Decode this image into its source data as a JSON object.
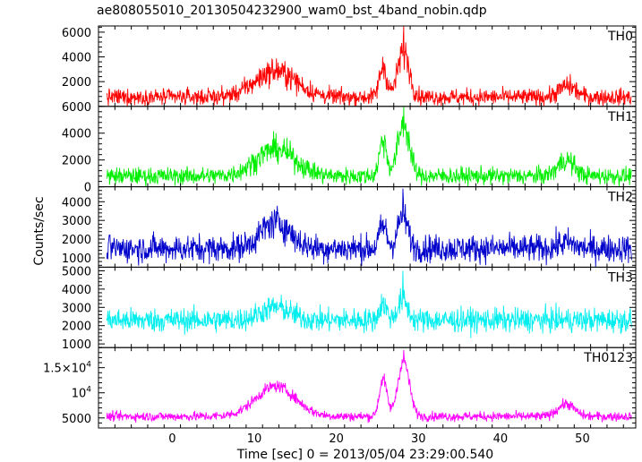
{
  "title": "ae808055010_20130504232900_wam0_bst_4band_nobin.qdp",
  "xlabel": "Time [sec] 0 = 2013/05/04 23:29:00.540",
  "ylabel": "Counts/sec",
  "chart_data": {
    "type": "line",
    "title": "ae808055010_20130504232900_wam0_bst_4band_nobin.qdp",
    "xlabel": "Time [sec] 0 = 2013/05/04 23:29:00.540",
    "ylabel": "Counts/sec",
    "xlim": [
      -9,
      56.5
    ],
    "x_ticks": [
      0,
      10,
      20,
      30,
      40,
      50
    ],
    "x_tick_labels": [
      "0",
      "10",
      "20",
      "30",
      "40",
      "50"
    ],
    "grid": false,
    "legend": "none",
    "data_range": [
      -8,
      56
    ],
    "panels": [
      {
        "name": "TH0",
        "color": "#ff0000",
        "ylim": [
          0,
          6500
        ],
        "y_ticks": [
          2000,
          4000,
          6000
        ],
        "y_tick_labels": [
          "2000",
          "4000",
          "6000"
        ],
        "baseline": 750,
        "noise": 420,
        "sqrt_noise": 6.4,
        "components": [
          {
            "center": 12.6,
            "width": 2.5,
            "amp": 2100
          },
          {
            "center": 25.7,
            "width": 0.45,
            "amp": 2500
          },
          {
            "center": 28.2,
            "width": 0.7,
            "amp": 3700
          },
          {
            "center": 48.2,
            "width": 1.0,
            "amp": 900
          }
        ],
        "peak_value": 6500
      },
      {
        "name": "TH1",
        "color": "#00ee00",
        "ylim": [
          0,
          6000
        ],
        "y_ticks": [
          0,
          2000,
          4000,
          6000
        ],
        "y_tick_labels": [
          "0",
          "2000",
          "4000",
          "6000"
        ],
        "baseline": 800,
        "noise": 400,
        "sqrt_noise": 6.0,
        "components": [
          {
            "center": 12.6,
            "width": 2.4,
            "amp": 2000
          },
          {
            "center": 25.7,
            "width": 0.45,
            "amp": 2700
          },
          {
            "center": 28.2,
            "width": 0.7,
            "amp": 3900
          },
          {
            "center": 48.0,
            "width": 1.0,
            "amp": 1200
          }
        ],
        "peak_value": 6000
      },
      {
        "name": "TH2",
        "color": "#0000cc",
        "ylim": [
          500,
          4800
        ],
        "y_ticks": [
          1000,
          2000,
          3000,
          4000
        ],
        "y_tick_labels": [
          "1000",
          "2000",
          "3000",
          "4000"
        ],
        "baseline": 1500,
        "noise": 600,
        "sqrt_noise": 4.0,
        "components": [
          {
            "center": 12.6,
            "width": 1.8,
            "amp": 1400
          },
          {
            "center": 25.7,
            "width": 0.45,
            "amp": 1200
          },
          {
            "center": 28.1,
            "width": 0.6,
            "amp": 1800
          },
          {
            "center": 48.0,
            "width": 1.0,
            "amp": 300
          }
        ],
        "peak_value": 4700
      },
      {
        "name": "TH3",
        "color": "#00eeee",
        "ylim": [
          800,
          5200
        ],
        "y_ticks": [
          1000,
          2000,
          3000,
          4000,
          5000
        ],
        "y_tick_labels": [
          "1000",
          "2000",
          "3000",
          "4000",
          "5000"
        ],
        "baseline": 2300,
        "noise": 800,
        "sqrt_noise": 1.5,
        "components": [
          {
            "center": 12.6,
            "width": 1.8,
            "amp": 700
          },
          {
            "center": 25.7,
            "width": 0.45,
            "amp": 900
          },
          {
            "center": 28.1,
            "width": 0.6,
            "amp": 1100
          }
        ],
        "peak_value": 5000
      },
      {
        "name": "TH0123",
        "color": "#ff00ff",
        "ylim": [
          3000,
          19000
        ],
        "y_ticks": [
          5000,
          10000,
          15000
        ],
        "y_tick_labels": [
          "5000",
          "10^4",
          "1.5×10^4"
        ],
        "baseline": 5300,
        "noise": 700,
        "sqrt_noise": 3.0,
        "components": [
          {
            "center": 12.6,
            "width": 2.4,
            "amp": 6000
          },
          {
            "center": 25.7,
            "width": 0.45,
            "amp": 7500
          },
          {
            "center": 28.2,
            "width": 0.7,
            "amp": 11000
          },
          {
            "center": 48.0,
            "width": 1.0,
            "amp": 2500
          }
        ],
        "peak_value": 18500
      }
    ]
  }
}
